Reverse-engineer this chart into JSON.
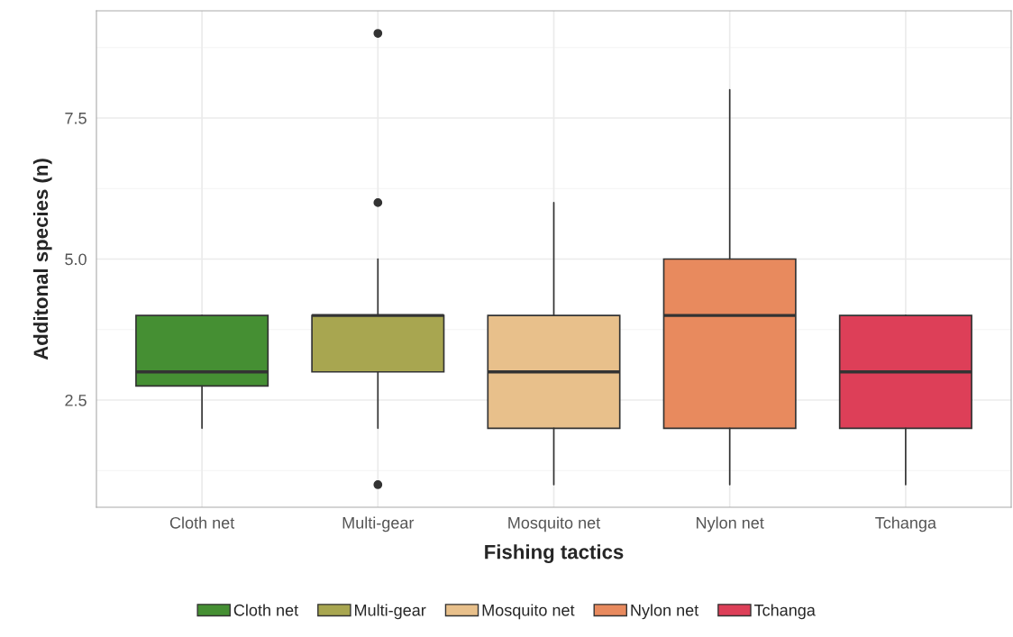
{
  "chart_data": {
    "type": "box",
    "xlabel": "Fishing tactics",
    "ylabel": "Additonal species (n)",
    "categories": [
      "Cloth net",
      "Multi-gear",
      "Mosquito net",
      "Nylon net",
      "Tchanga"
    ],
    "series": [
      {
        "name": "Cloth net",
        "color": "#458f33",
        "boxes": [
          {
            "low": 2,
            "q1": 2.75,
            "median": 3,
            "q3": 4,
            "high": 4
          },
          null,
          null,
          null,
          null
        ]
      },
      {
        "name": "Multi-gear",
        "color": "#a8a650",
        "boxes": [
          null,
          {
            "low": 2,
            "q1": 3,
            "median": 4,
            "q3": 4,
            "high": 5,
            "outliers": [
              9,
              6,
              1
            ]
          },
          null,
          null,
          null
        ]
      },
      {
        "name": "Mosquito net",
        "color": "#e8c08b",
        "boxes": [
          null,
          null,
          {
            "low": 1,
            "q1": 2,
            "median": 3,
            "q3": 4,
            "high": 6
          },
          null,
          null
        ]
      },
      {
        "name": "Nylon net",
        "color": "#e88a5e",
        "boxes": [
          null,
          null,
          null,
          {
            "low": 1,
            "q1": 2,
            "median": 4,
            "q3": 5,
            "high": 8
          },
          null
        ]
      },
      {
        "name": "Tchanga",
        "color": "#dd3f58",
        "boxes": [
          null,
          null,
          null,
          null,
          {
            "low": 1,
            "q1": 2,
            "median": 3,
            "q3": 4,
            "high": 4
          }
        ]
      }
    ],
    "ylim": [
      0.6,
      9.4
    ],
    "yticks": [
      2.5,
      {
        "value": 5,
        "label": "5.0"
      },
      7.5
    ],
    "grid": true,
    "legend": "bottom"
  }
}
